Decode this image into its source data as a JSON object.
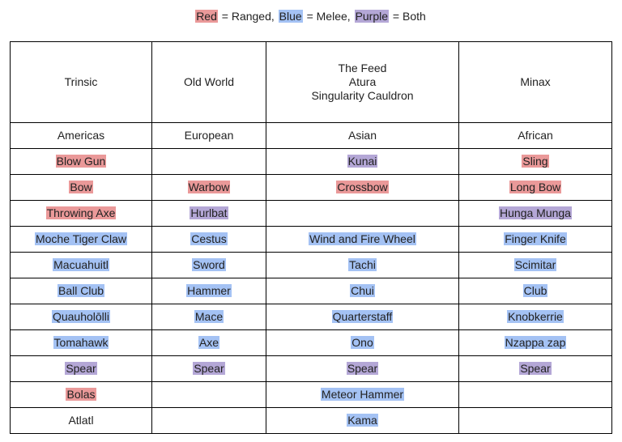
{
  "legend": [
    {
      "text": "Red",
      "color": "red"
    },
    {
      "text": " = Ranged, ",
      "color": ""
    },
    {
      "text": "Blue",
      "color": "blue"
    },
    {
      "text": " = Melee, ",
      "color": ""
    },
    {
      "text": "Purple",
      "color": "purple"
    },
    {
      "text": " = Both",
      "color": ""
    }
  ],
  "colors": {
    "red": "#ea9999",
    "blue": "#a4c2f4",
    "purple": "#b4a7d6"
  },
  "headers": [
    [
      "Trinsic"
    ],
    [
      "Old World"
    ],
    [
      "The Feed",
      "Atura",
      "Singularity Cauldron"
    ],
    [
      "Minax"
    ]
  ],
  "regions": [
    "Americas",
    "European",
    "Asian",
    "African"
  ],
  "rows": [
    [
      {
        "text": "Blow Gun",
        "color": "red"
      },
      {
        "text": "",
        "color": ""
      },
      {
        "text": "Kunai",
        "color": "purple"
      },
      {
        "text": "Sling",
        "color": "red"
      }
    ],
    [
      {
        "text": "Bow",
        "color": "red"
      },
      {
        "text": "Warbow",
        "color": "red"
      },
      {
        "text": "Crossbow",
        "color": "red"
      },
      {
        "text": "Long Bow",
        "color": "red"
      }
    ],
    [
      {
        "text": "Throwing Axe",
        "color": "red"
      },
      {
        "text": "Hurlbat",
        "color": "purple"
      },
      {
        "text": "",
        "color": ""
      },
      {
        "text": "Hunga Munga",
        "color": "purple"
      }
    ],
    [
      {
        "text": "Moche Tiger Claw",
        "color": "blue"
      },
      {
        "text": "Cestus",
        "color": "blue"
      },
      {
        "text": "Wind and Fire Wheel",
        "color": "blue"
      },
      {
        "text": "Finger Knife",
        "color": "blue"
      }
    ],
    [
      {
        "text": "Macuahuitl",
        "color": "blue"
      },
      {
        "text": "Sword",
        "color": "blue"
      },
      {
        "text": "Tachi",
        "color": "blue"
      },
      {
        "text": "Scimitar",
        "color": "blue"
      }
    ],
    [
      {
        "text": "Ball Club",
        "color": "blue"
      },
      {
        "text": "Hammer",
        "color": "blue"
      },
      {
        "text": "Chui",
        "color": "blue"
      },
      {
        "text": "Club",
        "color": "blue"
      }
    ],
    [
      {
        "text": "Quauholōlli",
        "color": "blue"
      },
      {
        "text": "Mace",
        "color": "blue"
      },
      {
        "text": "Quarterstaff",
        "color": "blue"
      },
      {
        "text": "Knobkerrie",
        "color": "blue"
      }
    ],
    [
      {
        "text": "Tomahawk",
        "color": "blue"
      },
      {
        "text": "Axe",
        "color": "blue"
      },
      {
        "text": "Ono",
        "color": "blue"
      },
      {
        "text": "Nzappa zap",
        "color": "blue"
      }
    ],
    [
      {
        "text": "Spear",
        "color": "purple"
      },
      {
        "text": "Spear",
        "color": "purple"
      },
      {
        "text": "Spear",
        "color": "purple"
      },
      {
        "text": "Spear",
        "color": "purple"
      }
    ],
    [
      {
        "text": "Bolas",
        "color": "red"
      },
      {
        "text": "",
        "color": ""
      },
      {
        "text": "Meteor Hammer",
        "color": "blue"
      },
      {
        "text": "",
        "color": ""
      }
    ],
    [
      {
        "text": "Atlatl",
        "color": ""
      },
      {
        "text": "",
        "color": ""
      },
      {
        "text": "Kama",
        "color": "blue"
      },
      {
        "text": "",
        "color": ""
      }
    ]
  ]
}
